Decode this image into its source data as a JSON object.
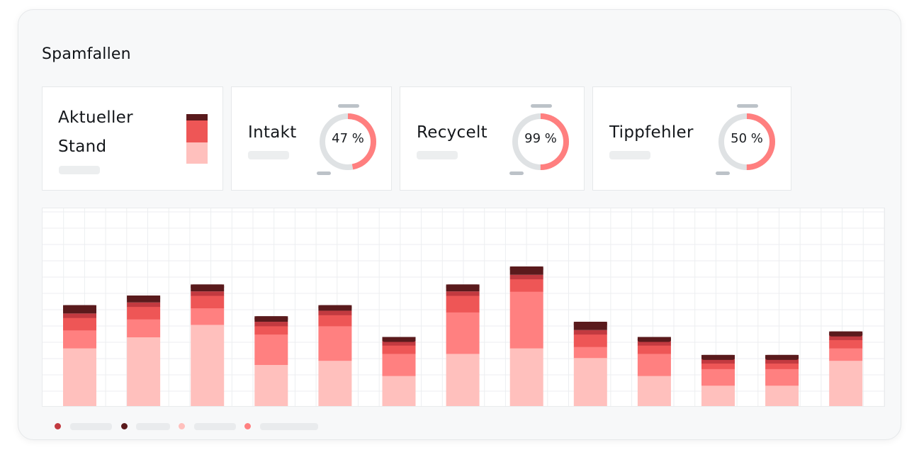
{
  "header": {
    "title": "Spamfallen"
  },
  "cards": {
    "current": {
      "label_line1": "Aktueller",
      "label_line2": "Stand"
    },
    "intakt": {
      "label": "Intakt",
      "percent": 47,
      "percent_label": "47 %"
    },
    "recycelt": {
      "label": "Recycelt",
      "percent": 99,
      "percent_label": "99 %"
    },
    "tippfehler": {
      "label": "Tippfehler",
      "percent": 50,
      "percent_label": "50 %"
    }
  },
  "colors": {
    "light": "#ffc0bd",
    "mid": "#ff8080",
    "red": "#ee5656",
    "crimson": "#c23a40",
    "dark": "#5a1a1c",
    "donut_track": "#dfe2e4",
    "donut_fill": "#ff7f7f",
    "tick": "#bcc2c8"
  },
  "chart_data": {
    "type": "bar",
    "stacked": true,
    "categories": [
      "",
      "",
      "",
      "",
      "",
      "",
      "",
      "",
      "",
      "",
      "",
      "",
      ""
    ],
    "series": [
      {
        "color": "#ffc0bd",
        "values": [
          42,
          50,
          59,
          30,
          33,
          22,
          38,
          42,
          35,
          22,
          15,
          15,
          33
        ]
      },
      {
        "color": "#ff8080",
        "values": [
          13,
          13,
          12,
          22,
          25,
          16,
          30,
          41,
          8,
          16,
          12,
          12,
          9
        ]
      },
      {
        "color": "#ee5656",
        "values": [
          9,
          9,
          9,
          6,
          8,
          6,
          12,
          9,
          9,
          6,
          4,
          4,
          6
        ]
      },
      {
        "color": "#c23a40",
        "values": [
          3,
          3,
          3,
          3,
          3,
          3,
          3,
          3,
          3,
          3,
          3,
          3,
          3
        ]
      },
      {
        "color": "#5a1a1c",
        "values": [
          6,
          5,
          5,
          4,
          4,
          3,
          5,
          6,
          6,
          3,
          3,
          3,
          3
        ]
      }
    ],
    "ylim": [
      0,
      122
    ],
    "grid": true,
    "legend": "bottom-left",
    "legend_colors": [
      "#c23a40",
      "#5a1a1c",
      "#ffc0bd",
      "#ff8080"
    ]
  }
}
